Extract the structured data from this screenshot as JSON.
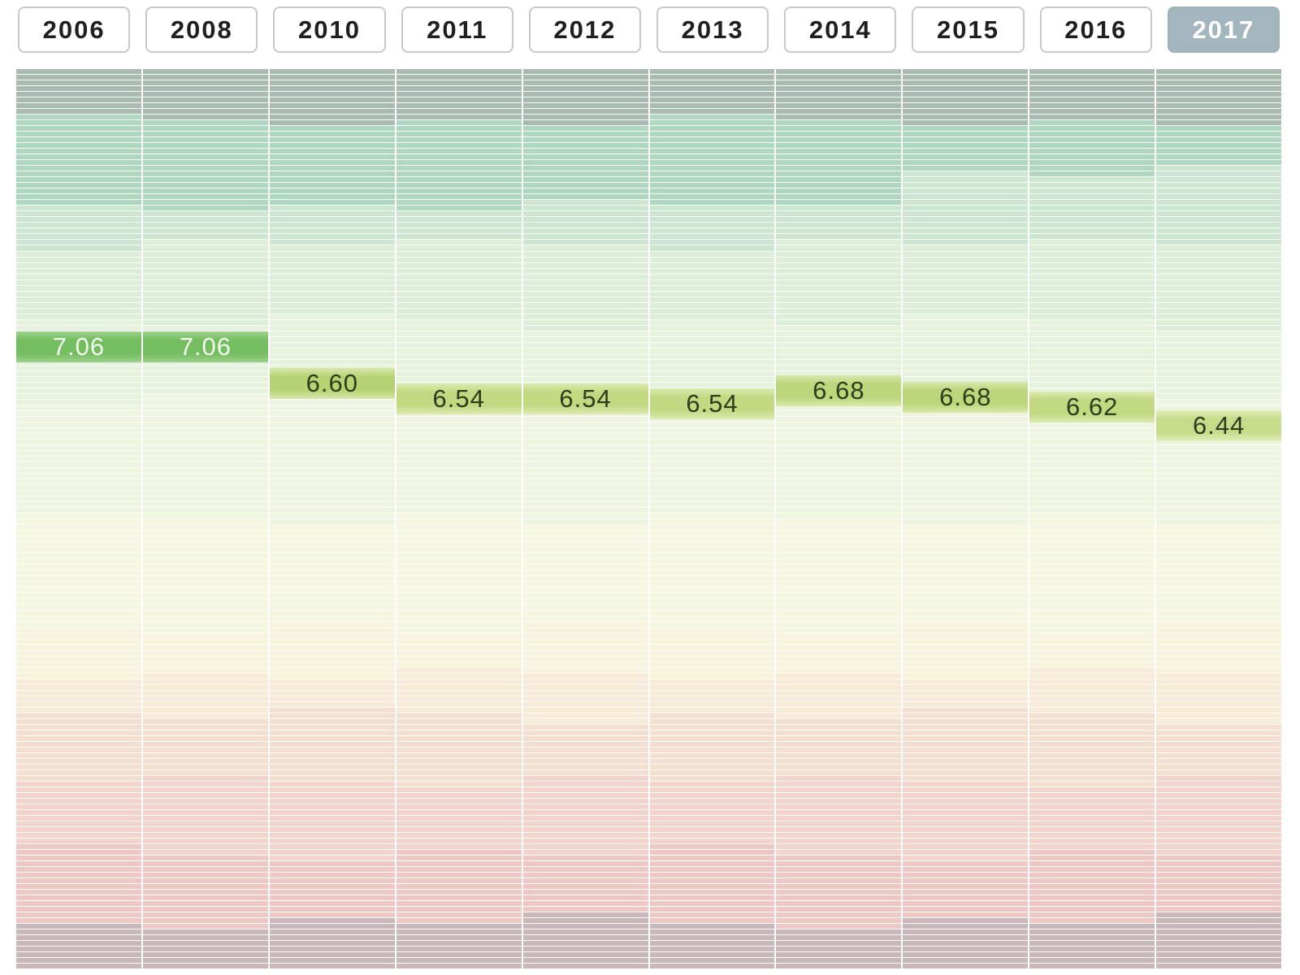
{
  "page": {
    "background": "#ffffff"
  },
  "tabs": {
    "years": [
      "2006",
      "2008",
      "2010",
      "2011",
      "2012",
      "2013",
      "2014",
      "2015",
      "2016",
      "2017"
    ],
    "selected": "2017",
    "selected_bg": "#a3b5bd",
    "selected_text": "#ffffff",
    "unselected_bg": "#ffffff",
    "unselected_text": "#1f1f1f",
    "border_color": "#c9c9c9"
  },
  "chart_data": {
    "type": "heatmap",
    "subtype": "ranked-stripe-bump-chart",
    "title": "",
    "description": "Each column is a year; each thin horizontal stripe is one ranked entity, colored from gray-green/teal (top ranks) through pale green, cream and peach to pink and mauve-gray (bottom ranks). One entity's score per year is highlighted with a labeled cell whose vertical position shows its rank.",
    "legend_position": "none",
    "grid": "white gaps between stripes and columns",
    "years": [
      "2006",
      "2008",
      "2010",
      "2011",
      "2012",
      "2013",
      "2014",
      "2015",
      "2016",
      "2017"
    ],
    "selected_year": "2017",
    "rows_per_column": 158,
    "highlight": {
      "scores": [
        "7.06",
        "7.06",
        "6.60",
        "6.54",
        "6.54",
        "6.54",
        "6.68",
        "6.68",
        "6.62",
        "6.44"
      ],
      "score_values": [
        7.06,
        7.06,
        6.6,
        6.54,
        6.54,
        6.54,
        6.68,
        6.68,
        6.62,
        6.44
      ],
      "top_frac": [
        0.2915,
        0.2915,
        0.3321,
        0.3493,
        0.3493,
        0.3547,
        0.3402,
        0.3475,
        0.3583,
        0.3791
      ],
      "cell_mid": [
        "#74bd60",
        "#74bd60",
        "#b5d373",
        "#c2d982",
        "#c2d982",
        "#c2d982",
        "#bdd67c",
        "#bdd67c",
        "#c1d981",
        "#c7dc8a"
      ],
      "cell_edge": [
        "#9dd28c",
        "#9dd28c",
        "#d9e8ad",
        "#dcebb3",
        "#dcebb3",
        "#dcebb3",
        "#d8e8ab",
        "#d8e8ab",
        "#dceab0",
        "#e0edb8"
      ],
      "text_color": [
        "#f2f9ee",
        "#f2f9ee",
        "#2f3d1c",
        "#2f3d1c",
        "#2f3d1c",
        "#2f3d1c",
        "#2f3d1c",
        "#2f3d1c",
        "#2f3d1c",
        "#2f3d1c"
      ]
    },
    "bands": [
      {
        "end": 0.058,
        "color": "#a9bab1"
      },
      {
        "end": 0.153,
        "color": "#afd6c1"
      },
      {
        "end": 0.195,
        "color": "#cde6d1"
      },
      {
        "end": 0.28,
        "color": "#dcedd8"
      },
      {
        "end": 0.37,
        "color": "#e7f2dd"
      },
      {
        "end": 0.5,
        "color": "#edf5e0"
      },
      {
        "end": 0.62,
        "color": "#f4f6df"
      },
      {
        "end": 0.672,
        "color": "#f8f3dc"
      },
      {
        "end": 0.717,
        "color": "#f7ebd7"
      },
      {
        "end": 0.79,
        "color": "#f4decf"
      },
      {
        "end": 0.871,
        "color": "#f2d4cc"
      },
      {
        "end": 0.947,
        "color": "#edc8c4"
      },
      {
        "end": 1.0,
        "color": "#c9b7b9"
      }
    ],
    "band_overrides": {
      "1": {
        "6": -0.012,
        "7": -0.035,
        "8": -0.035,
        "9": -0.035
      }
    },
    "stripe_gap_color": "#fafcf9",
    "column_gap_color": "#ffffff"
  }
}
